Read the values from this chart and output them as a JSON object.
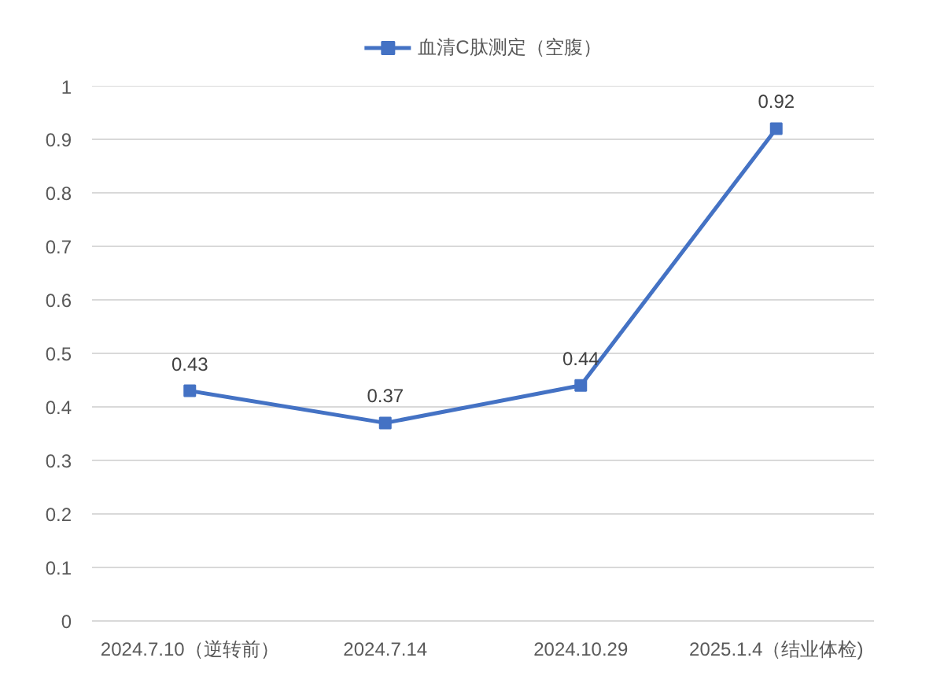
{
  "chart_data": {
    "type": "line",
    "categories": [
      "2024.7.10（逆转前）",
      "2024.7.14",
      "2024.10.29",
      "2025.1.4（结业体检)"
    ],
    "series": [
      {
        "name": "血清C肽测定（空腹）",
        "color": "#4472c4",
        "values": [
          0.43,
          0.37,
          0.44,
          0.92
        ]
      }
    ],
    "ylim": [
      0,
      1
    ],
    "yticks": [
      0,
      0.1,
      0.2,
      0.3,
      0.4,
      0.5,
      0.6,
      0.7,
      0.8,
      0.9,
      1
    ],
    "grid": "y",
    "legend": "top",
    "marker": "square",
    "line_style": "solid",
    "data_labels": true
  }
}
